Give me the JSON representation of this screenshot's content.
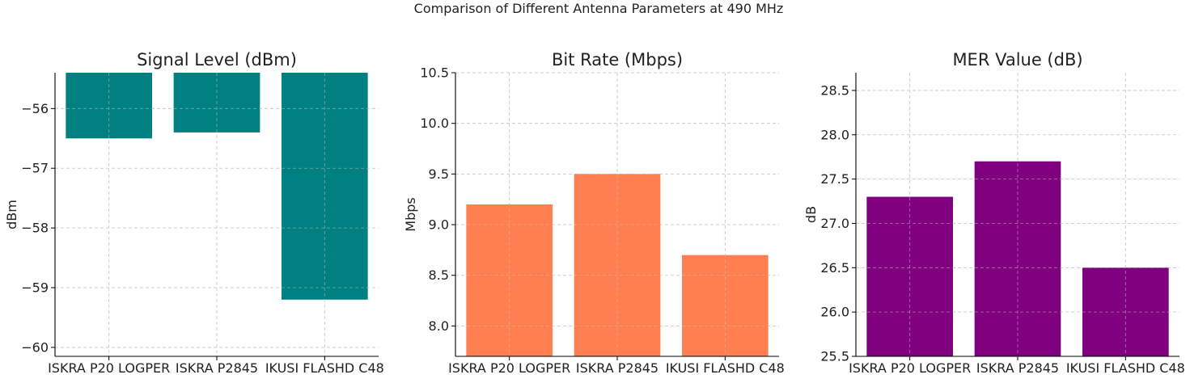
{
  "figure_title": "Comparison of Different Antenna Parameters at 490 MHz",
  "chart_data": [
    {
      "type": "bar",
      "title": "Signal Level (dBm)",
      "ylabel": "dBm",
      "xlabel": "",
      "categories": [
        "ISKRA P20 LOGPER",
        "ISKRA P2845",
        "IKUSI FLASHD C48"
      ],
      "values": [
        -56.5,
        -56.4,
        -59.2
      ],
      "ylim": [
        -60.15,
        -55.4
      ],
      "yticks": [
        -60,
        -59,
        -58,
        -57,
        -56
      ],
      "ytick_labels": [
        "−60",
        "−59",
        "−58",
        "−57",
        "−56"
      ],
      "bar_baseline": -55.4,
      "color": "#008080",
      "grid": true
    },
    {
      "type": "bar",
      "title": "Bit Rate (Mbps)",
      "ylabel": "Mbps",
      "xlabel": "",
      "categories": [
        "ISKRA P20 LOGPER",
        "ISKRA P2845",
        "IKUSI FLASHD C48"
      ],
      "values": [
        9.2,
        9.5,
        8.7
      ],
      "ylim": [
        7.7,
        10.5
      ],
      "yticks": [
        8.0,
        8.5,
        9.0,
        9.5,
        10.0,
        10.5
      ],
      "ytick_labels": [
        "8.0",
        "8.5",
        "9.0",
        "9.5",
        "10.0",
        "10.5"
      ],
      "bar_baseline": 7.7,
      "color": "#FF7F50",
      "grid": true
    },
    {
      "type": "bar",
      "title": "MER Value (dB)",
      "ylabel": "dB",
      "xlabel": "",
      "categories": [
        "ISKRA P20 LOGPER",
        "ISKRA P2845",
        "IKUSI FLASHD C48"
      ],
      "values": [
        27.3,
        27.7,
        26.5
      ],
      "ylim": [
        25.5,
        28.7
      ],
      "yticks": [
        25.5,
        26.0,
        26.5,
        27.0,
        27.5,
        28.0,
        28.5
      ],
      "ytick_labels": [
        "25.5",
        "26.0",
        "26.5",
        "27.0",
        "27.5",
        "28.0",
        "28.5"
      ],
      "bar_baseline": 25.5,
      "color": "#800080",
      "grid": true
    }
  ]
}
